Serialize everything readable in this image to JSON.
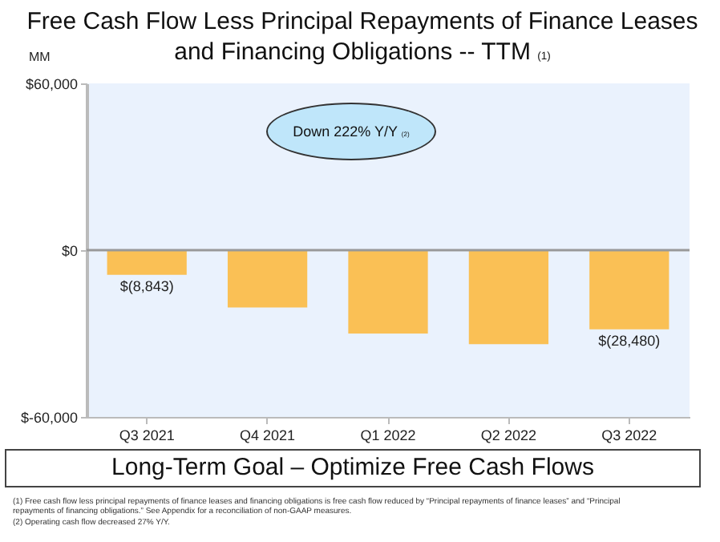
{
  "chart_data": {
    "type": "bar",
    "title": "Free Cash Flow Less Principal Repayments of Finance Leases and Financing Obligations -- TTM (1)",
    "ylabel": "MM",
    "categories": [
      "Q3 2021",
      "Q4 2021",
      "Q1 2022",
      "Q2 2022",
      "Q3 2022"
    ],
    "values": [
      -8843,
      -20600,
      -30000,
      -33800,
      -28480
    ],
    "value_labels": [
      "$(8,843)",
      null,
      null,
      null,
      "$(28,480)"
    ],
    "color": "#fac055",
    "ylim": [
      -60000,
      60000
    ],
    "yticks": [
      {
        "value": -60000,
        "label": "$-60,000"
      },
      {
        "value": 0,
        "label": "$0"
      },
      {
        "value": 60000,
        "label": "$60,000"
      }
    ],
    "ref_lines": [
      {
        "axis": "y",
        "value": 0,
        "color": "#999999"
      }
    ],
    "annotations": [
      "Down 222% Y/Y (2)",
      "Long-Term Goal – Optimize Free Cash Flows",
      "(1) Free cash flow less principal repayments of finance leases and financing obligations is free cash flow reduced by “Principal repayments of finance leases” and “Principal repayments of financing obligations.” See Appendix for a reconciliation of non-GAAP measures.",
      "(2) Operating cash flow decreased 27% Y/Y."
    ]
  }
}
